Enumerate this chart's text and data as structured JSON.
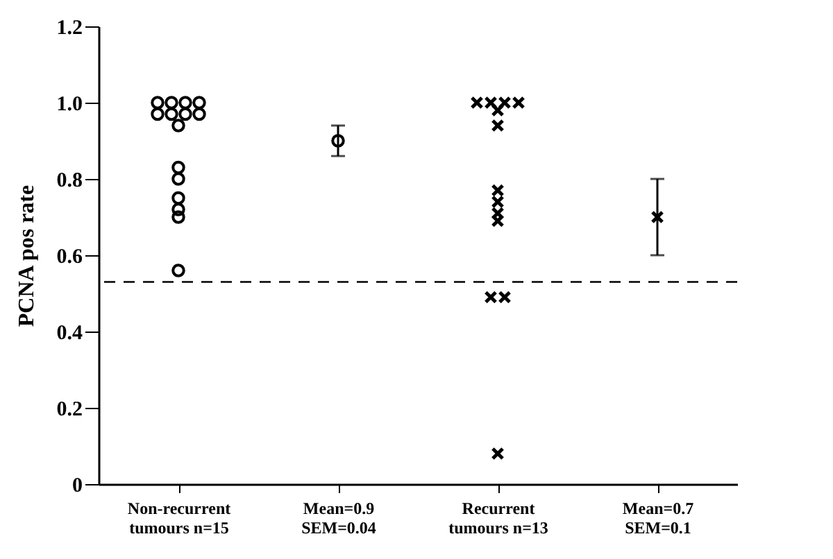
{
  "chart_data": {
    "type": "scatter",
    "ylabel": "PCNA pos rate",
    "categories": [
      "Non-recurrent\ntumours n=15",
      "Mean=0.9\nSEM=0.04",
      "Recurrent\ntumours n=13",
      "Mean=0.7\nSEM=0.1"
    ],
    "series": [
      {
        "marker": "circle",
        "color": "#000000",
        "x": [
          "Non-recurrent\ntumours n=15",
          "Non-recurrent\ntumours n=15",
          "Non-recurrent\ntumours n=15",
          "Non-recurrent\ntumours n=15",
          "Non-recurrent\ntumours n=15",
          "Non-recurrent\ntumours n=15",
          "Non-recurrent\ntumours n=15",
          "Non-recurrent\ntumours n=15",
          "Non-recurrent\ntumours n=15",
          "Non-recurrent\ntumours n=15",
          "Non-recurrent\ntumours n=15",
          "Non-recurrent\ntumours n=15",
          "Non-recurrent\ntumours n=15",
          "Non-recurrent\ntumours n=15",
          "Non-recurrent\ntumours n=15"
        ],
        "values": [
          1.0,
          1.0,
          1.0,
          1.0,
          0.97,
          0.97,
          0.97,
          0.97,
          0.94,
          0.83,
          0.8,
          0.75,
          0.72,
          0.7,
          0.56
        ]
      },
      {
        "marker": "circle",
        "color": "#000000",
        "x": [
          "Mean=0.9\nSEM=0.04"
        ],
        "values": [
          0.9
        ],
        "errors": [
          0.04
        ]
      },
      {
        "marker": "cross",
        "color": "#000000",
        "x": [
          "Recurrent\ntumours n=13",
          "Recurrent\ntumours n=13",
          "Recurrent\ntumours n=13",
          "Recurrent\ntumours n=13",
          "Recurrent\ntumours n=13",
          "Recurrent\ntumours n=13",
          "Recurrent\ntumours n=13",
          "Recurrent\ntumours n=13",
          "Recurrent\ntumours n=13",
          "Recurrent\ntumours n=13",
          "Recurrent\ntumours n=13",
          "Recurrent\ntumours n=13",
          "Recurrent\ntumours n=13"
        ],
        "values": [
          1.0,
          1.0,
          1.0,
          1.0,
          0.98,
          0.94,
          0.77,
          0.74,
          0.71,
          0.69,
          0.49,
          0.49,
          0.08
        ]
      },
      {
        "marker": "cross",
        "color": "#000000",
        "x": [
          "Mean=0.7\nSEM=0.1"
        ],
        "values": [
          0.7
        ],
        "errors": [
          0.1
        ]
      }
    ],
    "ylim": [
      0,
      1.2
    ],
    "yticks": [
      0,
      0.2,
      0.4,
      0.6,
      0.8,
      {
        "value": 1.0,
        "label": "1.0"
      },
      1.2
    ],
    "ref_lines": [
      {
        "axis": "y",
        "value": 0.53,
        "line_style": "dashed"
      }
    ],
    "grid": false
  }
}
